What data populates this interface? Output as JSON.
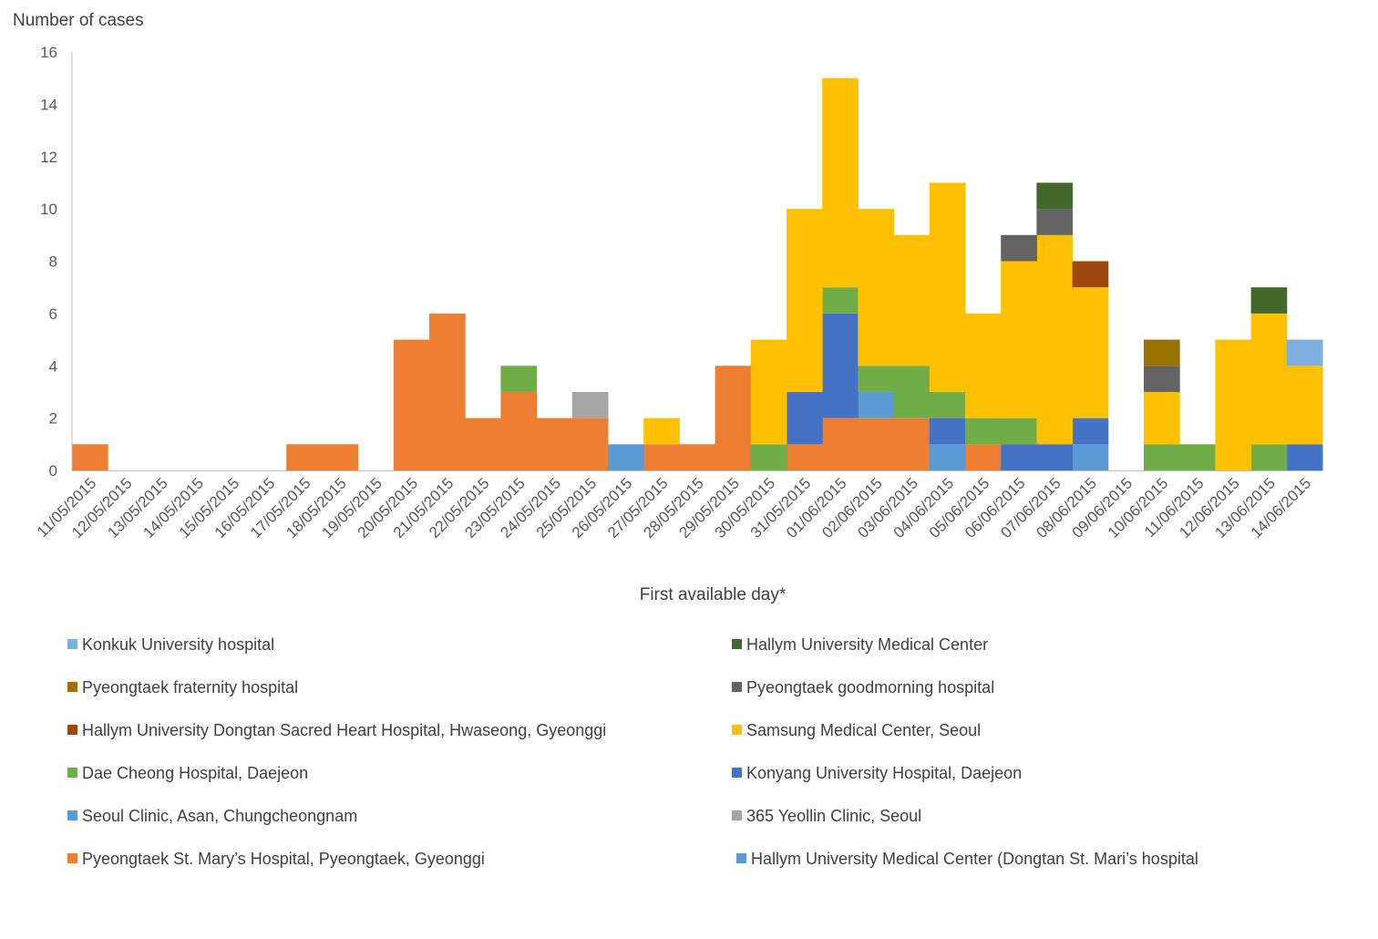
{
  "chart_data": {
    "type": "bar",
    "stacked": true,
    "title": "",
    "ylabel": "Number of cases",
    "xlabel": "First available day*",
    "ylim": [
      0,
      16
    ],
    "yticks": [
      0,
      2,
      4,
      6,
      8,
      10,
      12,
      14,
      16
    ],
    "grid": false,
    "legend_position": "bottom",
    "categories": [
      "11/05/2015",
      "12/05/2015",
      "13/05/2015",
      "14/05/2015",
      "15/05/2015",
      "16/05/2015",
      "17/05/2015",
      "18/05/2015",
      "19/05/2015",
      "20/05/2015",
      "21/05/2015",
      "22/05/2015",
      "23/05/2015",
      "24/05/2015",
      "25/05/2015",
      "26/05/2015",
      "27/05/2015",
      "28/05/2015",
      "29/05/2015",
      "30/05/2015",
      "31/05/2015",
      "01/06/2015",
      "02/06/2015",
      "03/06/2015",
      "04/06/2015",
      "05/06/2015",
      "06/06/2015",
      "07/06/2015",
      "08/06/2015",
      "09/06/2015",
      "10/06/2015",
      "11/06/2015",
      "12/06/2015",
      "13/06/2015",
      "14/06/2015"
    ],
    "series": [
      {
        "name": "Pyeongtaek St. Mary’s Hospital, Pyeongtaek, Gyeonggi",
        "color": "#ED7D31",
        "values": [
          1,
          0,
          0,
          0,
          0,
          0,
          1,
          1,
          0,
          5,
          6,
          2,
          3,
          2,
          2,
          0,
          1,
          1,
          4,
          0,
          1,
          2,
          2,
          2,
          0,
          1,
          0,
          0,
          0,
          0,
          0,
          0,
          0,
          0,
          0
        ]
      },
      {
        "name": "Seoul Clinic, Asan, Chungcheongnam",
        "color": "#5B9BD5",
        "values": [
          0,
          0,
          0,
          0,
          0,
          0,
          0,
          0,
          0,
          0,
          0,
          0,
          0,
          0,
          0,
          1,
          0,
          0,
          0,
          0,
          0,
          0,
          1,
          0,
          1,
          0,
          0,
          0,
          1,
          0,
          0,
          0,
          0,
          0,
          0
        ]
      },
      {
        "name": "Konyang University Hospital, Daejeon",
        "color": "#4472C4",
        "values": [
          0,
          0,
          0,
          0,
          0,
          0,
          0,
          0,
          0,
          0,
          0,
          0,
          0,
          0,
          0,
          0,
          0,
          0,
          0,
          0,
          2,
          4,
          0,
          0,
          1,
          0,
          1,
          1,
          1,
          0,
          0,
          0,
          0,
          0,
          1
        ]
      },
      {
        "name": "Dae Cheong Hospital, Daejeon",
        "color": "#70AD47",
        "values": [
          0,
          0,
          0,
          0,
          0,
          0,
          0,
          0,
          0,
          0,
          0,
          0,
          1,
          0,
          0,
          0,
          0,
          0,
          0,
          1,
          0,
          1,
          1,
          2,
          1,
          1,
          1,
          0,
          0,
          0,
          1,
          1,
          0,
          1,
          0
        ]
      },
      {
        "name": "365 Yeollin Clinic, Seoul",
        "color": "#A5A5A5",
        "values": [
          0,
          0,
          0,
          0,
          0,
          0,
          0,
          0,
          0,
          0,
          0,
          0,
          0,
          0,
          1,
          0,
          0,
          0,
          0,
          0,
          0,
          0,
          0,
          0,
          0,
          0,
          0,
          0,
          0,
          0,
          0,
          0,
          0,
          0,
          0
        ]
      },
      {
        "name": "Samsung Medical Center, Seoul",
        "color": "#FFC000",
        "values": [
          0,
          0,
          0,
          0,
          0,
          0,
          0,
          0,
          0,
          0,
          0,
          0,
          0,
          0,
          0,
          0,
          1,
          0,
          0,
          4,
          7,
          8,
          6,
          5,
          8,
          4,
          6,
          8,
          5,
          0,
          2,
          0,
          5,
          5,
          3
        ]
      },
      {
        "name": "Pyeongtaek goodmorning hospital",
        "color": "#636363",
        "values": [
          0,
          0,
          0,
          0,
          0,
          0,
          0,
          0,
          0,
          0,
          0,
          0,
          0,
          0,
          0,
          0,
          0,
          0,
          0,
          0,
          0,
          0,
          0,
          0,
          0,
          0,
          1,
          1,
          0,
          0,
          1,
          0,
          0,
          0,
          0
        ]
      },
      {
        "name": "Hallym University Dongtan Sacred Heart Hospital, Hwaseong, Gyeonggi",
        "color": "#9E480E",
        "values": [
          0,
          0,
          0,
          0,
          0,
          0,
          0,
          0,
          0,
          0,
          0,
          0,
          0,
          0,
          0,
          0,
          0,
          0,
          0,
          0,
          0,
          0,
          0,
          0,
          0,
          0,
          0,
          0,
          1,
          0,
          0,
          0,
          0,
          0,
          0
        ]
      },
      {
        "name": "Pyeongtaek fraternity hospital",
        "color": "#997300",
        "values": [
          0,
          0,
          0,
          0,
          0,
          0,
          0,
          0,
          0,
          0,
          0,
          0,
          0,
          0,
          0,
          0,
          0,
          0,
          0,
          0,
          0,
          0,
          0,
          0,
          0,
          0,
          0,
          0,
          0,
          0,
          1,
          0,
          0,
          0,
          0
        ]
      },
      {
        "name": "Hallym University Medical Center",
        "color": "#43682B",
        "values": [
          0,
          0,
          0,
          0,
          0,
          0,
          0,
          0,
          0,
          0,
          0,
          0,
          0,
          0,
          0,
          0,
          0,
          0,
          0,
          0,
          0,
          0,
          0,
          0,
          0,
          0,
          0,
          1,
          0,
          0,
          0,
          0,
          0,
          1,
          0
        ]
      },
      {
        "name": "Konkuk University hospital",
        "color": "#7CAFDD",
        "values": [
          0,
          0,
          0,
          0,
          0,
          0,
          0,
          0,
          0,
          0,
          0,
          0,
          0,
          0,
          0,
          0,
          0,
          0,
          0,
          0,
          0,
          0,
          0,
          0,
          0,
          0,
          0,
          0,
          0,
          0,
          0,
          0,
          0,
          0,
          1
        ]
      },
      {
        "name": "Hallym University Medical Center (Dongtan St. Mari’s hospital",
        "color": "#5B9BD5",
        "values": [
          0,
          0,
          0,
          0,
          0,
          0,
          0,
          0,
          0,
          0,
          0,
          0,
          0,
          0,
          0,
          0,
          0,
          0,
          0,
          0,
          0,
          0,
          0,
          0,
          0,
          0,
          0,
          0,
          0,
          0,
          0,
          0,
          0,
          0,
          0
        ]
      }
    ]
  },
  "legend": {
    "left": [
      {
        "label": "Konkuk University hospital",
        "color": "#7CAFDD"
      },
      {
        "label": "Pyeongtaek fraternity hospital",
        "color": "#997300"
      },
      {
        "label": "Hallym University Dongtan Sacred Heart Hospital, Hwaseong, Gyeonggi",
        "color": "#9E480E"
      },
      {
        "label": "Dae Cheong Hospital, Daejeon",
        "color": "#70AD47"
      },
      {
        "label": "Seoul Clinic, Asan, Chungcheongnam",
        "color": "#5B9BD5"
      },
      {
        "label": "Pyeongtaek St. Mary’s Hospital, Pyeongtaek, Gyeonggi",
        "color": "#ED7D31"
      }
    ],
    "right": [
      {
        "label": "Hallym University Medical Center",
        "color": "#43682B"
      },
      {
        "label": "Pyeongtaek goodmorning hospital",
        "color": "#636363"
      },
      {
        "label": "Samsung Medical Center, Seoul",
        "color": "#FFC000"
      },
      {
        "label": "Konyang University Hospital, Daejeon",
        "color": "#4472C4"
      },
      {
        "label": "365 Yeollin Clinic, Seoul",
        "color": "#A5A5A5"
      },
      {
        "label": "Hallym University Medical Center (Dongtan St. Mari’s hospital",
        "color": "#5B9BD5"
      }
    ]
  }
}
